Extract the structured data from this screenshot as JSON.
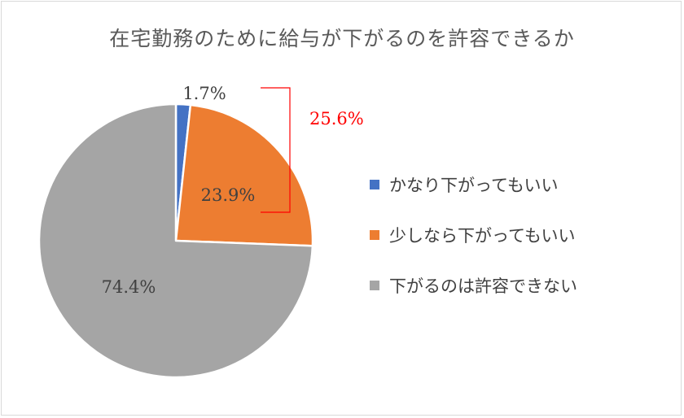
{
  "chart_data": {
    "type": "pie",
    "title": "在宅勤務のために給与が下がるのを許容できるか",
    "labels": [
      "かなり下がってもいい",
      "少しなら下がってもいい",
      "下がるのは許容できない"
    ],
    "values": [
      1.7,
      23.9,
      74.4
    ],
    "value_labels": [
      "1.7%",
      "23.9%",
      "74.4%"
    ],
    "colors": [
      "#4472C4",
      "#ED7D31",
      "#A5A5A5"
    ],
    "annotation": {
      "text": "25.6%",
      "color": "#FF0000"
    },
    "legend_position": "right"
  }
}
